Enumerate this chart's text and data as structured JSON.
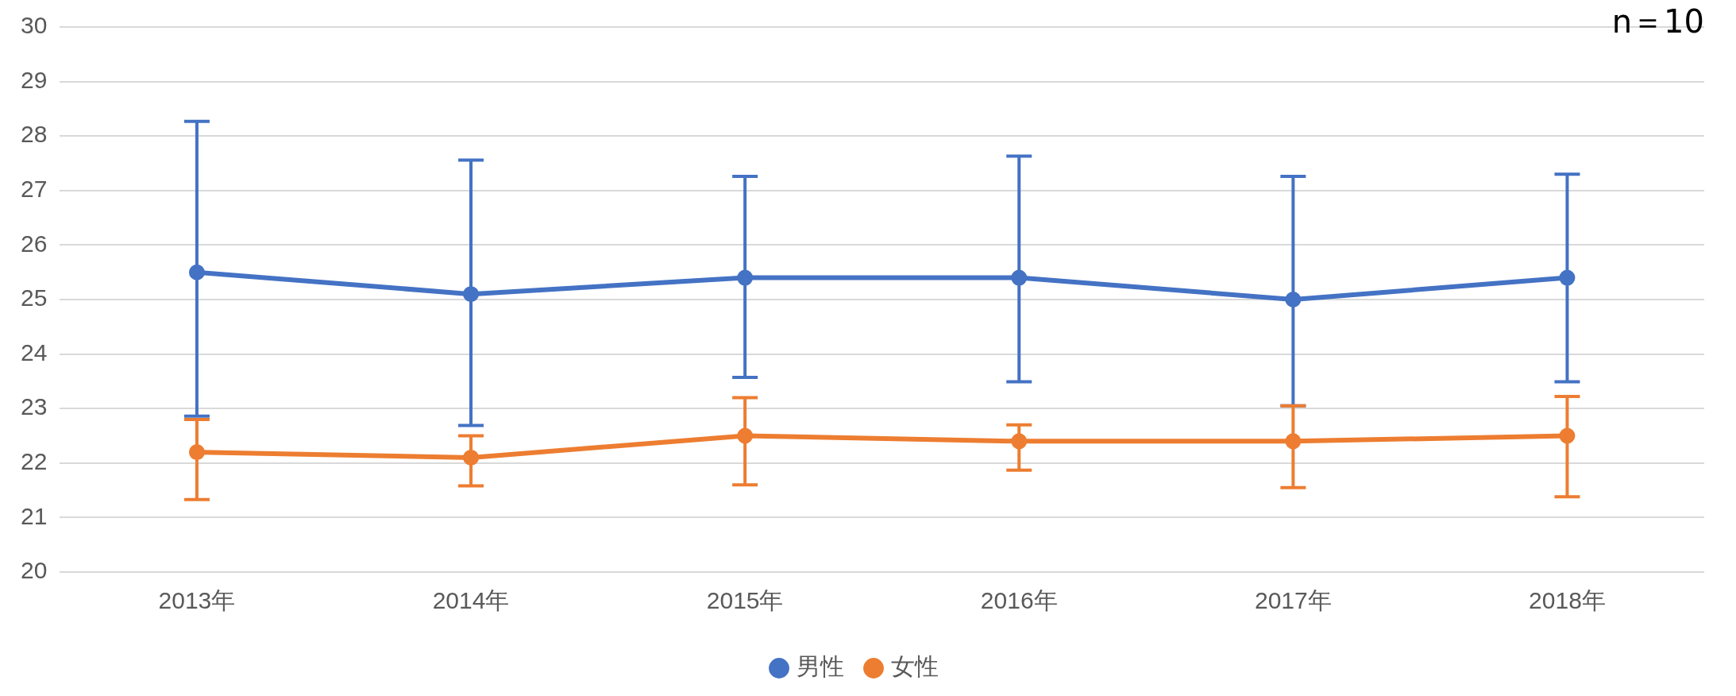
{
  "chart_data": {
    "type": "line",
    "categories": [
      "2013年",
      "2014年",
      "2015年",
      "2016年",
      "2017年",
      "2018年"
    ],
    "series": [
      {
        "name": "男性",
        "color": "#4472c4",
        "values": [
          25.5,
          25.1,
          25.4,
          25.4,
          25.0,
          25.4
        ],
        "errors": [
          [
            22.86,
            28.27
          ],
          [
            22.69,
            27.56
          ],
          [
            23.57,
            27.26
          ],
          [
            23.49,
            27.63
          ],
          [
            23.05,
            27.26
          ],
          [
            23.49,
            27.3
          ]
        ]
      },
      {
        "name": "女性",
        "color": "#ed7d31",
        "values": [
          22.2,
          22.1,
          22.5,
          22.4,
          22.4,
          22.5
        ],
        "errors": [
          [
            21.33,
            22.8
          ],
          [
            21.58,
            22.5
          ],
          [
            21.6,
            23.2
          ],
          [
            21.87,
            22.7
          ],
          [
            21.55,
            23.05
          ],
          [
            21.38,
            23.22
          ]
        ]
      }
    ],
    "ylim": [
      20,
      30
    ],
    "yticks": [
      20,
      21,
      22,
      23,
      24,
      25,
      26,
      27,
      28,
      29,
      30
    ],
    "grid": "y",
    "legend": "bottom",
    "marker": "circle",
    "line_style": "solid",
    "annotations": [
      "n＝10"
    ]
  }
}
